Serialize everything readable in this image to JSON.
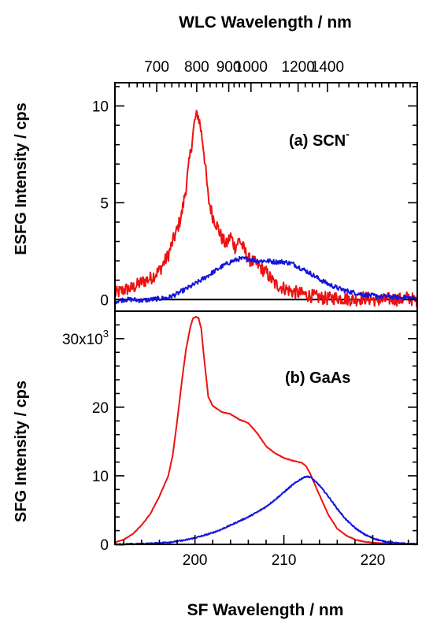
{
  "chart_data": [
    {
      "type": "line",
      "panel": "top",
      "annotation": "(a) SCN",
      "annotation_superscript": "-",
      "ylabel": "ESFG Intensity / cps",
      "xlabel": "SF Wavelength / nm",
      "top_axis_label": "WLC Wavelength / nm",
      "xlim": [
        191,
        225
      ],
      "ylim": [
        -0.6,
        11.2
      ],
      "yticks": [
        "0",
        "5",
        "10"
      ],
      "yticks_values": [
        0,
        5,
        10
      ],
      "top_ticks": [
        "700",
        "800",
        "900",
        "1000",
        "1200",
        "1400"
      ],
      "top_ticks_sf": [
        195.7,
        200.2,
        203.8,
        206.3,
        211.6,
        214.9
      ],
      "zero_line": true,
      "colors": {
        "red": "#ee1111",
        "blue": "#1515dd"
      },
      "series": [
        {
          "color": "#ee1111",
          "x": [
            191,
            192,
            193,
            194,
            195,
            196,
            197,
            197.5,
            198,
            198.5,
            199,
            199.5,
            200,
            200.3,
            200.6,
            201,
            201.5,
            202,
            202.5,
            203,
            203.5,
            204,
            204.5,
            205,
            205.5,
            206,
            207,
            208,
            209,
            210,
            211,
            212,
            213,
            214,
            215,
            216,
            217,
            218,
            219,
            220,
            221,
            222,
            223,
            224,
            225
          ],
          "y": [
            0.3,
            0.5,
            0.6,
            0.9,
            1.1,
            1.5,
            2.3,
            3.0,
            3.6,
            4.4,
            5.8,
            7.6,
            9.3,
            9.6,
            9.0,
            7.7,
            5.2,
            4.3,
            3.8,
            3.2,
            2.8,
            3.3,
            2.7,
            3.1,
            2.6,
            2.1,
            1.8,
            1.4,
            0.8,
            0.6,
            0.4,
            0.3,
            0.2,
            0.1,
            0.05,
            0.1,
            0.05,
            0,
            0.1,
            0,
            -0.05,
            0.05,
            0,
            0.1,
            -0.1
          ]
        },
        {
          "color": "#1515dd",
          "x": [
            191,
            192,
            193,
            194,
            195,
            196,
            197,
            198,
            199,
            200,
            201,
            202,
            203,
            204,
            205,
            206,
            207,
            208,
            209,
            210,
            211,
            212,
            213,
            214,
            215,
            216,
            217,
            218,
            219,
            220,
            221,
            222,
            223,
            224,
            225
          ],
          "y": [
            -0.1,
            0,
            0,
            -0.05,
            0,
            0.05,
            0.1,
            0.3,
            0.55,
            0.8,
            1.1,
            1.4,
            1.7,
            1.95,
            2.1,
            2.1,
            2.0,
            2.0,
            1.95,
            1.95,
            1.85,
            1.6,
            1.35,
            1.05,
            0.8,
            0.6,
            0.45,
            0.35,
            0.25,
            0.2,
            0.15,
            0.15,
            0.1,
            0.1,
            0.05
          ]
        }
      ]
    },
    {
      "type": "line",
      "panel": "bottom",
      "annotation": "(b) GaAs",
      "ylabel": "SFG Intensity / cps",
      "xlabel": "SF Wavelength / nm",
      "xlim": [
        191,
        225
      ],
      "ylim": [
        0,
        34000
      ],
      "yticks": [
        "0",
        "10",
        "20",
        "30x10"
      ],
      "yticks_values": [
        0,
        10000,
        20000,
        30000
      ],
      "y_exponent": "3",
      "xticks": [
        "200",
        "210",
        "220"
      ],
      "xticks_values": [
        200,
        210,
        220
      ],
      "series": [
        {
          "color": "#ee1111",
          "x": [
            191,
            192,
            193,
            194,
            195,
            196,
            197,
            197.5,
            198,
            198.5,
            199,
            199.5,
            199.8,
            200.1,
            200.4,
            200.7,
            201,
            201.5,
            202,
            203,
            204,
            205,
            206,
            207,
            208,
            209,
            210,
            211,
            212,
            212.5,
            213,
            214,
            215,
            216,
            217,
            218,
            219,
            220,
            221,
            222,
            223,
            224,
            225
          ],
          "y": [
            300,
            700,
            1500,
            2800,
            4500,
            7000,
            10000,
            13000,
            18000,
            23500,
            28500,
            31800,
            33000,
            33200,
            33000,
            31500,
            27500,
            21500,
            20200,
            19300,
            19000,
            18200,
            17700,
            16200,
            14300,
            13300,
            12600,
            12200,
            11900,
            11400,
            10200,
            7200,
            4300,
            2300,
            1300,
            700,
            400,
            250,
            150,
            100,
            50,
            30,
            20
          ]
        },
        {
          "color": "#1515dd",
          "x": [
            191,
            192,
            193,
            194,
            195,
            196,
            197,
            198,
            199,
            200,
            201,
            202,
            203,
            204,
            205,
            206,
            207,
            208,
            209,
            210,
            211,
            212,
            212.5,
            213,
            214,
            215,
            216,
            217,
            218,
            219,
            220,
            221,
            222,
            223,
            224,
            225
          ],
          "y": [
            0,
            20,
            40,
            80,
            120,
            200,
            300,
            450,
            650,
            950,
            1300,
            1700,
            2200,
            2800,
            3400,
            4000,
            4700,
            5500,
            6500,
            7600,
            8700,
            9600,
            9900,
            9800,
            8600,
            7000,
            5200,
            3600,
            2400,
            1500,
            900,
            500,
            300,
            150,
            80,
            40
          ]
        }
      ]
    }
  ]
}
